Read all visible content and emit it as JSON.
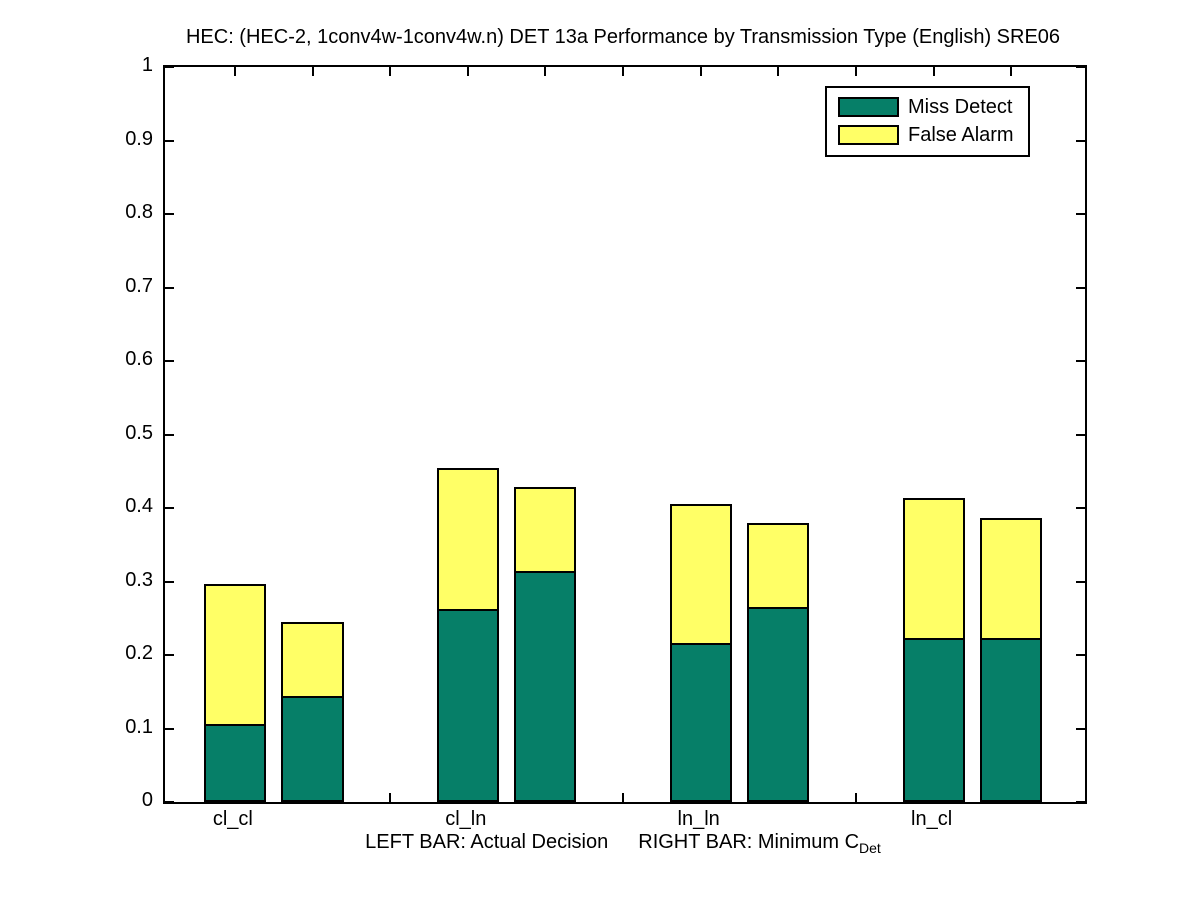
{
  "chart_data": {
    "type": "bar",
    "stacked": true,
    "title": "HEC: (HEC-2, 1conv4w-1conv4w.n) DET 13a Performance by Transmission Type (English) SRE06",
    "xlabel_left": "LEFT BAR: Actual Decision",
    "xlabel_right_prefix": "RIGHT BAR: Minimum C",
    "xlabel_sub": "Det",
    "ylabel": "",
    "ylim": [
      0,
      1
    ],
    "xlim": [
      0.1,
      11.95
    ],
    "yticks": [
      0,
      0.1,
      0.2,
      0.3,
      0.4,
      0.5,
      0.6,
      0.7,
      0.8,
      0.9,
      1
    ],
    "ytick_labels": [
      "0",
      "0.1",
      "0.2",
      "0.3",
      "0.4",
      "0.5",
      "0.6",
      "0.7",
      "0.8",
      "0.9",
      "1"
    ],
    "xticks": [
      1,
      2,
      3,
      4,
      5,
      6,
      7,
      8,
      9,
      10,
      11
    ],
    "xtick_labels": [
      {
        "x": 1,
        "label": "cl_cl"
      },
      {
        "x": 4,
        "label": "cl_ln"
      },
      {
        "x": 7,
        "label": "ln_ln"
      },
      {
        "x": 10,
        "label": "ln_cl"
      }
    ],
    "bar_width": 0.8,
    "grid": false,
    "colors": {
      "miss_detect": "#067F68",
      "false_alarm": "#FFFF66",
      "edge": "#000000"
    },
    "legend": {
      "position": "top-right",
      "entries": [
        {
          "label": "Miss Detect",
          "color": "#067F68"
        },
        {
          "label": "False Alarm",
          "color": "#FFFF66"
        }
      ]
    },
    "bars": [
      {
        "group": "cl_cl",
        "bar": "left",
        "x": 1,
        "miss_detect": 0.104,
        "false_alarm": 0.192,
        "total": 0.296
      },
      {
        "group": "cl_cl",
        "bar": "right",
        "x": 2,
        "miss_detect": 0.142,
        "false_alarm": 0.103,
        "total": 0.245
      },
      {
        "group": "cl_ln",
        "bar": "left",
        "x": 4,
        "miss_detect": 0.26,
        "false_alarm": 0.195,
        "total": 0.455
      },
      {
        "group": "cl_ln",
        "bar": "right",
        "x": 5,
        "miss_detect": 0.311,
        "false_alarm": 0.117,
        "total": 0.428
      },
      {
        "group": "ln_ln",
        "bar": "left",
        "x": 7,
        "miss_detect": 0.213,
        "false_alarm": 0.193,
        "total": 0.406
      },
      {
        "group": "ln_ln",
        "bar": "right",
        "x": 8,
        "miss_detect": 0.262,
        "false_alarm": 0.118,
        "total": 0.38
      },
      {
        "group": "ln_cl",
        "bar": "left",
        "x": 10,
        "miss_detect": 0.221,
        "false_alarm": 0.192,
        "total": 0.413
      },
      {
        "group": "ln_cl",
        "bar": "right",
        "x": 11,
        "miss_detect": 0.221,
        "false_alarm": 0.166,
        "total": 0.387
      }
    ]
  }
}
